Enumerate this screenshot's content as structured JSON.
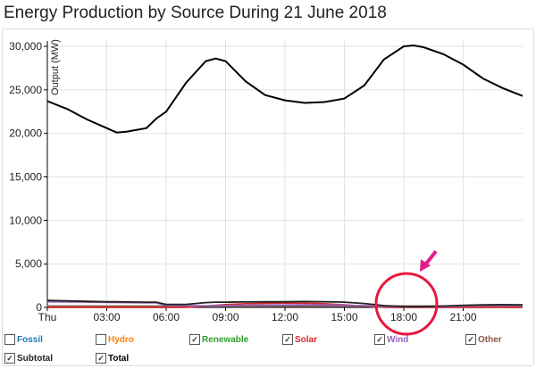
{
  "chart_data": {
    "type": "line",
    "title": "Energy Production by Source During 21 June 2018",
    "ylabel": "Output (MW)",
    "ylim": [
      0,
      30000
    ],
    "yticks": [
      "0",
      "5,000",
      "10,000",
      "15,000",
      "20,000",
      "25,000",
      "30,000"
    ],
    "xlim_hours": [
      0,
      24
    ],
    "xticks": [
      "Thu",
      "03:00",
      "06:00",
      "09:00",
      "12:00",
      "15:00",
      "18:00",
      "21:00"
    ],
    "grid": true,
    "x_hours": [
      0,
      1,
      2,
      3,
      3.5,
      4,
      5,
      5.5,
      6,
      7,
      8,
      8.5,
      9,
      10,
      11,
      12,
      13,
      14,
      15,
      16,
      17,
      18,
      18.5,
      19,
      20,
      21,
      22,
      23,
      24
    ],
    "series": [
      {
        "name": "Total",
        "color": "#000000",
        "values": [
          23700,
          22800,
          21600,
          20600,
          20100,
          20200,
          20600,
          21700,
          22500,
          25800,
          28300,
          28600,
          28300,
          26000,
          24400,
          23800,
          23500,
          23600,
          24000,
          25500,
          28500,
          30000,
          30100,
          29900,
          29100,
          27900,
          26300,
          25200,
          24300
        ]
      },
      {
        "name": "Subtotal",
        "color": "#222222",
        "values": [
          800,
          750,
          700,
          650,
          650,
          620,
          600,
          600,
          350,
          350,
          550,
          600,
          600,
          620,
          650,
          650,
          680,
          650,
          600,
          450,
          200,
          100,
          80,
          100,
          150,
          250,
          300,
          320,
          300
        ]
      },
      {
        "name": "Wind",
        "color": "#9467bd",
        "values": [
          650,
          620,
          600,
          580,
          560,
          550,
          530,
          520,
          250,
          200,
          180,
          200,
          220,
          250,
          270,
          280,
          300,
          280,
          250,
          200,
          120,
          80,
          70,
          80,
          100,
          150,
          200,
          220,
          200
        ]
      },
      {
        "name": "Solar",
        "color": "#d62728",
        "values": [
          0,
          0,
          0,
          0,
          0,
          0,
          0,
          0,
          0,
          20,
          150,
          250,
          320,
          420,
          480,
          500,
          480,
          420,
          300,
          150,
          20,
          0,
          0,
          0,
          0,
          0,
          0,
          0,
          0
        ]
      },
      {
        "name": "Other",
        "color": "#8c564b",
        "values": [
          150,
          150,
          150,
          150,
          150,
          150,
          150,
          150,
          150,
          150,
          150,
          150,
          150,
          150,
          150,
          150,
          150,
          150,
          150,
          150,
          150,
          150,
          150,
          150,
          150,
          150,
          150,
          150,
          150
        ]
      }
    ]
  },
  "legend": [
    {
      "label": "Fossil",
      "color": "#1f77b4",
      "checked": false
    },
    {
      "label": "Hydro",
      "color": "#ff7f0e",
      "checked": false
    },
    {
      "label": "Renewable",
      "color": "#2ca02c",
      "checked": true
    },
    {
      "label": "Solar",
      "color": "#d62728",
      "checked": true
    },
    {
      "label": "Wind",
      "color": "#9467bd",
      "checked": true
    },
    {
      "label": "Other",
      "color": "#8c564b",
      "checked": true
    },
    {
      "label": "Subtotal",
      "color": "#222222",
      "checked": true
    },
    {
      "label": "Total",
      "color": "#000000",
      "checked": true
    }
  ],
  "annotation": {
    "circle_color": "#e8173f",
    "arrow_color": "#e8198b"
  }
}
